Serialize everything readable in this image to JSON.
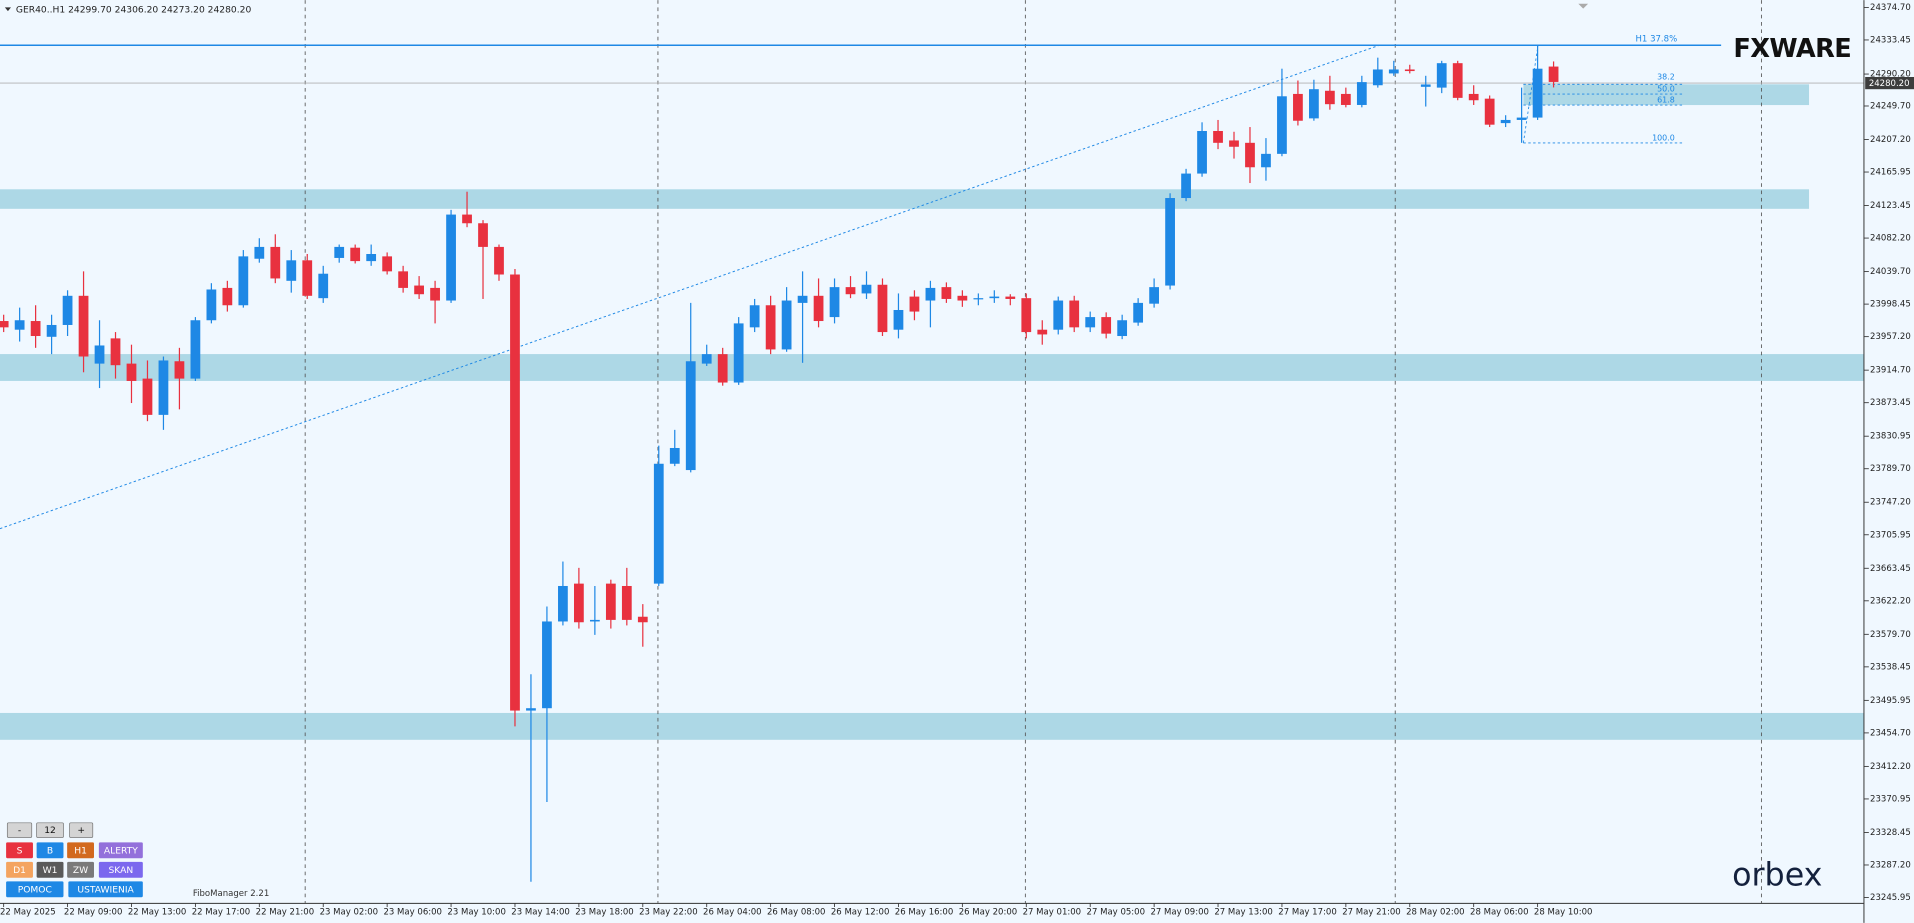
{
  "chart_data": {
    "type": "candlestick",
    "header": "GER40..H1  24299.70 24306.20 24273.20 24280.20",
    "categories": [
      "22 May 2025",
      null,
      null,
      null,
      "22 May 09:00",
      null,
      null,
      null,
      "22 May 13:00",
      null,
      null,
      null,
      "22 May 17:00",
      null,
      null,
      null,
      "22 May 21:00",
      null,
      null,
      null,
      "23 May 02:00",
      null,
      null,
      null,
      "23 May 06:00",
      null,
      null,
      null,
      "23 May 10:00",
      null,
      null,
      null,
      "23 May 14:00",
      null,
      null,
      null,
      "23 May 18:00",
      null,
      null,
      null,
      "23 May 22:00",
      null,
      null,
      null,
      "26 May 04:00",
      null,
      null,
      null,
      "26 May 08:00",
      null,
      null,
      null,
      "26 May 12:00",
      null,
      null,
      null,
      "26 May 16:00",
      null,
      null,
      null,
      "26 May 20:00",
      null,
      null,
      null,
      "27 May 01:00",
      null,
      null,
      null,
      "27 May 05:00",
      null,
      null,
      null,
      "27 May 09:00",
      null,
      null,
      null,
      "27 May 13:00",
      null,
      null,
      null,
      "27 May 17:00",
      null,
      null,
      null,
      "27 May 21:00",
      null,
      null,
      null,
      "28 May 02:00",
      null,
      null,
      null,
      "28 May 06:00",
      null,
      null,
      null,
      "28 May 10:00",
      null
    ],
    "open": [
      23977,
      23966,
      23977,
      23957,
      23972,
      24009,
      23923,
      23955,
      23923,
      23904,
      23858,
      23926,
      23904,
      23978,
      24019,
      23997,
      24056,
      24071,
      24028,
      24054,
      24006,
      24057,
      24070,
      24053,
      24059,
      24040,
      24022,
      24019,
      24003,
      24112,
      24101,
      24071,
      24036,
      23483,
      23486,
      23596,
      23644,
      23596,
      23644,
      23641,
      23602,
      23644,
      23796,
      23788,
      23923,
      23935,
      23899,
      23969,
      23997,
      23941,
      24000,
      24009,
      23982,
      24020,
      24012,
      24023,
      23966,
      24008,
      24003,
      24020,
      24009,
      24005,
      24006,
      24008,
      24006,
      23966,
      23966,
      24003,
      23969,
      23982,
      23958,
      23975,
      23999,
      24022,
      24133,
      24164,
      24218,
      24206,
      24203,
      24172,
      24189,
      24265,
      24234,
      24269,
      24265,
      24251,
      24276,
      24291,
      24296,
      24274,
      24273,
      24304,
      24265,
      24259,
      24228,
      24232,
      24235,
      24299.7
    ],
    "high": [
      23985,
      23994,
      23997,
      23985,
      24016,
      24040,
      23978,
      23963,
      23947,
      23927,
      23932,
      23943,
      23982,
      24025,
      24028,
      24067,
      24082,
      24087,
      24067,
      24062,
      24047,
      24074,
      24074,
      24074,
      24064,
      24047,
      24034,
      24028,
      24118,
      24141,
      24105,
      24074,
      24043,
      23529,
      23615,
      23672,
      23664,
      23641,
      23649,
      23664,
      23618,
      23819,
      23839,
      24000,
      23947,
      23943,
      23982,
      24005,
      24009,
      24020,
      24040,
      24031,
      24031,
      24034,
      24040,
      24031,
      24012,
      24016,
      24028,
      24026,
      24016,
      24012,
      24016,
      24011,
      24012,
      23978,
      24008,
      24009,
      23989,
      23988,
      23985,
      24006,
      24031,
      24139,
      24170,
      24229,
      24232,
      24217,
      24223,
      24209,
      24297,
      24282,
      24283,
      24288,
      24273,
      24288,
      24311,
      24307,
      24302,
      24288,
      24307,
      24307,
      24276,
      24263,
      24238,
      24273,
      24327,
      24306.2
    ],
    "low": [
      23963,
      23951,
      23943,
      23935,
      23958,
      23912,
      23892,
      23904,
      23873,
      23850,
      23839,
      23865,
      23901,
      23974,
      23989,
      23994,
      24051,
      24025,
      24013,
      24005,
      24000,
      24051,
      24050,
      24047,
      24036,
      24013,
      24005,
      23974,
      24000,
      24096,
      24005,
      24028,
      23463,
      23266,
      23367,
      23591,
      23587,
      23579,
      23587,
      23591,
      23564,
      23641,
      23793,
      23785,
      23920,
      23895,
      23896,
      23963,
      23935,
      23938,
      23924,
      23969,
      23974,
      24006,
      24005,
      23958,
      23955,
      23978,
      23969,
      24000,
      23995,
      23997,
      24000,
      23997,
      23955,
      23947,
      23960,
      23963,
      23963,
      23955,
      23954,
      23971,
      23994,
      24017,
      24129,
      24160,
      24195,
      24183,
      24152,
      24155,
      24186,
      24225,
      24231,
      24245,
      24248,
      24248,
      24273,
      24288,
      24291,
      24249,
      24266,
      24257,
      24251,
      24223,
      24223,
      24203,
      24232,
      24273.2
    ],
    "close": [
      23969,
      23978,
      23958,
      23972,
      24009,
      23932,
      23946,
      23921,
      23901,
      23858,
      23927,
      23904,
      23978,
      24017,
      23997,
      24059,
      24071,
      24031,
      24054,
      24009,
      24037,
      24071,
      24053,
      24062,
      24040,
      24019,
      24011,
      24003,
      24112,
      24101,
      24071,
      24036,
      23483,
      23486,
      23596,
      23641,
      23595,
      23598,
      23598,
      23598,
      23595,
      23796,
      23816,
      23926,
      23935,
      23899,
      23974,
      23997,
      23941,
      24003,
      24009,
      23977,
      24020,
      24011,
      24023,
      23963,
      23991,
      23989,
      24019,
      24005,
      24003,
      24006,
      24008,
      24005,
      23963,
      23960,
      24003,
      23969,
      23982,
      23961,
      23978,
      24000,
      24020,
      24133,
      24164,
      24218,
      24203,
      24198,
      24172,
      24189,
      24262,
      24231,
      24271,
      24252,
      24251,
      24280,
      24296,
      24296,
      24294,
      24277,
      24304,
      24260,
      24257,
      24226,
      24232,
      24235,
      24297,
      24280.2
    ],
    "up_color": "#1e88e5",
    "down_color": "#e8313f",
    "ylim": [
      23238.5,
      24384
    ],
    "yticks": [
      {
        "value": 24374.7,
        "label": "24374.70"
      },
      {
        "value": 24333.45,
        "label": "24333.45"
      },
      {
        "value": 24290.2,
        "label": "24290.20"
      },
      {
        "value": 24249.7,
        "label": "24249.70"
      },
      {
        "value": 24207.2,
        "label": "24207.20"
      },
      {
        "value": 24165.95,
        "label": "24165.95"
      },
      {
        "value": 24123.45,
        "label": "24123.45"
      },
      {
        "value": 24082.2,
        "label": "24082.20"
      },
      {
        "value": 24039.7,
        "label": "24039.70"
      },
      {
        "value": 23998.45,
        "label": "23998.45"
      },
      {
        "value": 23957.2,
        "label": "23957.20"
      },
      {
        "value": 23914.7,
        "label": "23914.70"
      },
      {
        "value": 23873.45,
        "label": "23873.45"
      },
      {
        "value": 23830.95,
        "label": "23830.95"
      },
      {
        "value": 23789.7,
        "label": "23789.70"
      },
      {
        "value": 23747.2,
        "label": "23747.20"
      },
      {
        "value": 23705.95,
        "label": "23705.95"
      },
      {
        "value": 23663.45,
        "label": "23663.45"
      },
      {
        "value": 23622.2,
        "label": "23622.20"
      },
      {
        "value": 23579.7,
        "label": "23579.70"
      },
      {
        "value": 23538.45,
        "label": "23538.45"
      },
      {
        "value": 23495.95,
        "label": "23495.95"
      },
      {
        "value": 23454.7,
        "label": "23454.70"
      },
      {
        "value": 23412.2,
        "label": "23412.20"
      },
      {
        "value": 23370.95,
        "label": "23370.95"
      },
      {
        "value": 23328.45,
        "label": "23328.45"
      },
      {
        "value": 23287.2,
        "label": "23287.20"
      },
      {
        "value": 23245.95,
        "label": "23245.95"
      }
    ],
    "grid": false,
    "price_label": "24280.20",
    "annotations": {
      "h1_level": "H1 37.8%",
      "fibo": [
        "38.2",
        "50.0",
        "61.8",
        "100.0"
      ]
    }
  },
  "branding": {
    "logo_top": "FXWARE",
    "logo_bottom": "orbex",
    "plugin": "FiboManager 2.21"
  },
  "toolbar": {
    "rows": [
      [
        "-",
        "12",
        "+"
      ],
      [
        "S",
        "B",
        "H1",
        "ALERTY"
      ],
      [
        "D1",
        "W1",
        "ZW",
        "SKAN"
      ],
      [
        "POMOC",
        "USTAWIENIA"
      ]
    ]
  }
}
